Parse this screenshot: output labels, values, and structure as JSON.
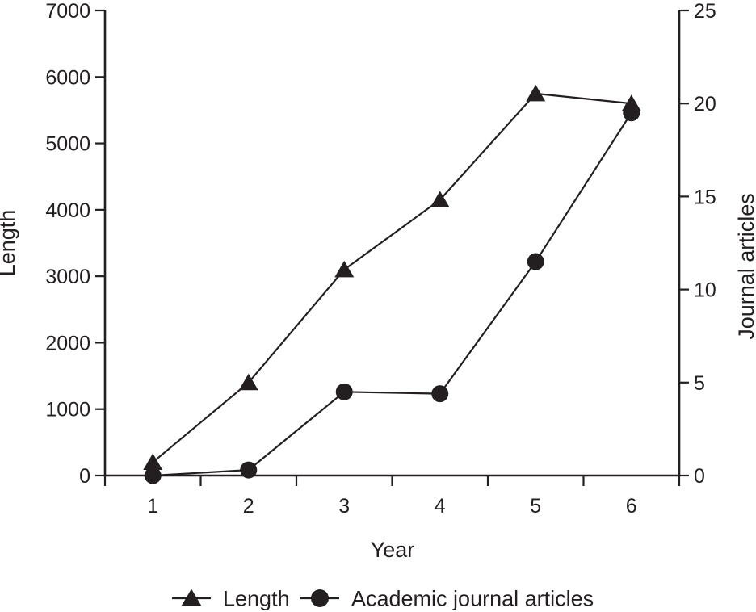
{
  "chart_data": {
    "type": "line",
    "title": "",
    "x": [
      1,
      2,
      3,
      4,
      5,
      6
    ],
    "x_axis": {
      "label": "Year",
      "tick_labels": [
        "1",
        "2",
        "3",
        "4",
        "5",
        "6"
      ],
      "tick_style": "between-categories"
    },
    "left_axis": {
      "label": "Length",
      "min": 0,
      "max": 7000,
      "tick_step": 1000,
      "ticks": [
        0,
        1000,
        2000,
        3000,
        4000,
        5000,
        6000,
        7000
      ]
    },
    "right_axis": {
      "label": "Journal articles",
      "min": 0,
      "max": 25,
      "tick_step": 5,
      "ticks": [
        0,
        5,
        10,
        15,
        20,
        25
      ]
    },
    "series": [
      {
        "name": "Length",
        "axis": "left",
        "marker": "triangle",
        "values": [
          200,
          1400,
          3100,
          4150,
          5750,
          5600
        ]
      },
      {
        "name": "Academic journal articles",
        "axis": "right",
        "marker": "circle",
        "values": [
          0,
          0.3,
          4.5,
          4.4,
          11.5,
          19.5
        ]
      }
    ],
    "legend": {
      "position": "bottom",
      "entries": [
        "Length",
        "Academic journal articles"
      ]
    },
    "grid": false,
    "colors": {
      "ink": "#231f20",
      "background": "#ffffff"
    }
  }
}
